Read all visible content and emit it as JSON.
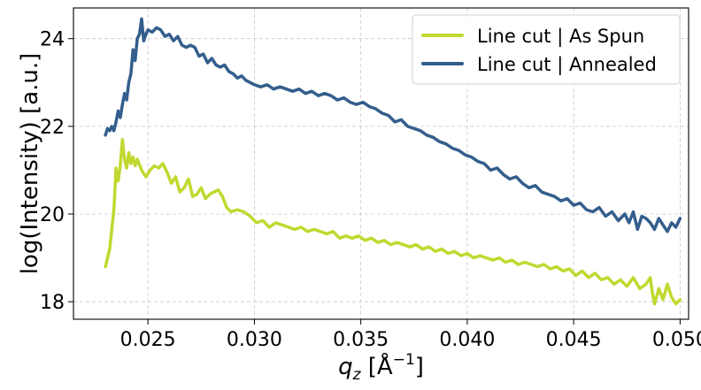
{
  "chart_data": {
    "type": "line",
    "xlabel": "q_z [Å^-1]",
    "ylabel": "log(Intensity) [a.u.]",
    "xlim": [
      0.0215,
      0.0504
    ],
    "ylim": [
      17.6,
      24.7
    ],
    "xticks": [
      0.025,
      0.03,
      0.035,
      0.04,
      0.045,
      0.05
    ],
    "xtick_labels": [
      "0.025",
      "0.030",
      "0.035",
      "0.040",
      "0.045",
      "0.050"
    ],
    "yticks": [
      18,
      20,
      22,
      24
    ],
    "ytick_labels": [
      "18",
      "20",
      "22",
      "24"
    ],
    "grid": true,
    "legend_position": "top-right",
    "series": [
      {
        "name": "Line cut | As Spun",
        "color": "#c1d82f",
        "points": [
          [
            0.023,
            18.8
          ],
          [
            0.0232,
            19.2
          ],
          [
            0.0234,
            20.1
          ],
          [
            0.0235,
            21.05
          ],
          [
            0.0236,
            20.75
          ],
          [
            0.0237,
            21.1
          ],
          [
            0.0238,
            21.7
          ],
          [
            0.0239,
            21.25
          ],
          [
            0.024,
            21.05
          ],
          [
            0.0241,
            21.4
          ],
          [
            0.0242,
            21.15
          ],
          [
            0.0243,
            21.3
          ],
          [
            0.0244,
            21.1
          ],
          [
            0.0245,
            21.25
          ],
          [
            0.0247,
            21.0
          ],
          [
            0.0249,
            20.85
          ],
          [
            0.0251,
            21.0
          ],
          [
            0.0253,
            21.1
          ],
          [
            0.0255,
            21.05
          ],
          [
            0.0257,
            21.15
          ],
          [
            0.0259,
            20.95
          ],
          [
            0.0261,
            20.7
          ],
          [
            0.0263,
            20.85
          ],
          [
            0.0265,
            20.5
          ],
          [
            0.0267,
            20.6
          ],
          [
            0.0269,
            20.8
          ],
          [
            0.0271,
            20.4
          ],
          [
            0.0273,
            20.45
          ],
          [
            0.0275,
            20.6
          ],
          [
            0.0277,
            20.35
          ],
          [
            0.0279,
            20.45
          ],
          [
            0.0281,
            20.5
          ],
          [
            0.0283,
            20.55
          ],
          [
            0.0285,
            20.4
          ],
          [
            0.0287,
            20.15
          ],
          [
            0.0289,
            20.05
          ],
          [
            0.0292,
            20.1
          ],
          [
            0.0295,
            20.05
          ],
          [
            0.0298,
            19.95
          ],
          [
            0.0301,
            19.8
          ],
          [
            0.0304,
            19.85
          ],
          [
            0.0307,
            19.7
          ],
          [
            0.031,
            19.8
          ],
          [
            0.0313,
            19.75
          ],
          [
            0.0316,
            19.7
          ],
          [
            0.0319,
            19.65
          ],
          [
            0.0322,
            19.7
          ],
          [
            0.0325,
            19.6
          ],
          [
            0.0328,
            19.65
          ],
          [
            0.0331,
            19.6
          ],
          [
            0.0334,
            19.55
          ],
          [
            0.0337,
            19.6
          ],
          [
            0.034,
            19.45
          ],
          [
            0.0343,
            19.5
          ],
          [
            0.0346,
            19.45
          ],
          [
            0.0349,
            19.5
          ],
          [
            0.0352,
            19.4
          ],
          [
            0.0355,
            19.45
          ],
          [
            0.0358,
            19.35
          ],
          [
            0.0361,
            19.4
          ],
          [
            0.0364,
            19.3
          ],
          [
            0.0367,
            19.35
          ],
          [
            0.037,
            19.3
          ],
          [
            0.0373,
            19.25
          ],
          [
            0.0376,
            19.3
          ],
          [
            0.0379,
            19.2
          ],
          [
            0.0382,
            19.25
          ],
          [
            0.0385,
            19.15
          ],
          [
            0.0388,
            19.2
          ],
          [
            0.0391,
            19.1
          ],
          [
            0.0394,
            19.15
          ],
          [
            0.0397,
            19.05
          ],
          [
            0.04,
            19.1
          ],
          [
            0.0403,
            19.0
          ],
          [
            0.0406,
            19.05
          ],
          [
            0.0409,
            19.0
          ],
          [
            0.0412,
            18.95
          ],
          [
            0.0415,
            19.0
          ],
          [
            0.0418,
            18.9
          ],
          [
            0.0421,
            18.95
          ],
          [
            0.0424,
            18.85
          ],
          [
            0.0427,
            18.9
          ],
          [
            0.043,
            18.85
          ],
          [
            0.0433,
            18.8
          ],
          [
            0.0436,
            18.85
          ],
          [
            0.0439,
            18.75
          ],
          [
            0.0442,
            18.8
          ],
          [
            0.0445,
            18.7
          ],
          [
            0.0448,
            18.75
          ],
          [
            0.0451,
            18.6
          ],
          [
            0.0454,
            18.7
          ],
          [
            0.0457,
            18.55
          ],
          [
            0.046,
            18.65
          ],
          [
            0.0463,
            18.5
          ],
          [
            0.0466,
            18.55
          ],
          [
            0.0469,
            18.4
          ],
          [
            0.0472,
            18.5
          ],
          [
            0.0475,
            18.35
          ],
          [
            0.0478,
            18.55
          ],
          [
            0.0481,
            18.3
          ],
          [
            0.0484,
            18.4
          ],
          [
            0.0486,
            18.55
          ],
          [
            0.0487,
            18.2
          ],
          [
            0.0488,
            17.95
          ],
          [
            0.049,
            18.3
          ],
          [
            0.0492,
            18.05
          ],
          [
            0.0494,
            18.4
          ],
          [
            0.0496,
            18.1
          ],
          [
            0.0498,
            17.95
          ],
          [
            0.05,
            18.05
          ]
        ]
      },
      {
        "name": "Line cut | Annealed",
        "color": "#335e8c",
        "points": [
          [
            0.023,
            21.8
          ],
          [
            0.0231,
            21.95
          ],
          [
            0.0232,
            21.9
          ],
          [
            0.0233,
            22.0
          ],
          [
            0.0234,
            21.9
          ],
          [
            0.0235,
            22.1
          ],
          [
            0.0236,
            22.35
          ],
          [
            0.0237,
            22.2
          ],
          [
            0.0238,
            22.5
          ],
          [
            0.0239,
            22.75
          ],
          [
            0.024,
            22.6
          ],
          [
            0.0241,
            23.0
          ],
          [
            0.0242,
            23.2
          ],
          [
            0.0243,
            23.75
          ],
          [
            0.0244,
            23.5
          ],
          [
            0.0245,
            24.0
          ],
          [
            0.0246,
            24.1
          ],
          [
            0.0247,
            24.45
          ],
          [
            0.0248,
            23.95
          ],
          [
            0.0249,
            24.1
          ],
          [
            0.025,
            24.2
          ],
          [
            0.0252,
            24.15
          ],
          [
            0.0254,
            24.25
          ],
          [
            0.0256,
            24.2
          ],
          [
            0.0258,
            24.05
          ],
          [
            0.026,
            24.1
          ],
          [
            0.0262,
            23.95
          ],
          [
            0.0264,
            24.05
          ],
          [
            0.0266,
            23.85
          ],
          [
            0.0268,
            23.8
          ],
          [
            0.027,
            23.85
          ],
          [
            0.0272,
            23.8
          ],
          [
            0.0274,
            23.6
          ],
          [
            0.0276,
            23.65
          ],
          [
            0.0278,
            23.45
          ],
          [
            0.028,
            23.55
          ],
          [
            0.0282,
            23.4
          ],
          [
            0.0284,
            23.35
          ],
          [
            0.0286,
            23.4
          ],
          [
            0.0288,
            23.25
          ],
          [
            0.029,
            23.2
          ],
          [
            0.0292,
            23.1
          ],
          [
            0.0294,
            23.15
          ],
          [
            0.0296,
            23.05
          ],
          [
            0.0298,
            23.0
          ],
          [
            0.03,
            22.95
          ],
          [
            0.0303,
            22.9
          ],
          [
            0.0306,
            22.95
          ],
          [
            0.0309,
            22.85
          ],
          [
            0.0312,
            22.9
          ],
          [
            0.0315,
            22.85
          ],
          [
            0.0318,
            22.8
          ],
          [
            0.0321,
            22.85
          ],
          [
            0.0324,
            22.75
          ],
          [
            0.0327,
            22.8
          ],
          [
            0.033,
            22.7
          ],
          [
            0.0333,
            22.75
          ],
          [
            0.0336,
            22.7
          ],
          [
            0.0339,
            22.6
          ],
          [
            0.0342,
            22.65
          ],
          [
            0.0345,
            22.55
          ],
          [
            0.0348,
            22.5
          ],
          [
            0.0351,
            22.55
          ],
          [
            0.0354,
            22.45
          ],
          [
            0.0357,
            22.4
          ],
          [
            0.036,
            22.3
          ],
          [
            0.0363,
            22.25
          ],
          [
            0.0366,
            22.1
          ],
          [
            0.0369,
            22.15
          ],
          [
            0.0372,
            22.0
          ],
          [
            0.0375,
            21.95
          ],
          [
            0.0378,
            21.9
          ],
          [
            0.0381,
            21.8
          ],
          [
            0.0384,
            21.75
          ],
          [
            0.0387,
            21.65
          ],
          [
            0.039,
            21.6
          ],
          [
            0.0393,
            21.5
          ],
          [
            0.0396,
            21.45
          ],
          [
            0.0399,
            21.35
          ],
          [
            0.0402,
            21.3
          ],
          [
            0.0405,
            21.2
          ],
          [
            0.0408,
            21.15
          ],
          [
            0.0411,
            21.0
          ],
          [
            0.0414,
            21.05
          ],
          [
            0.0417,
            20.9
          ],
          [
            0.042,
            20.8
          ],
          [
            0.0423,
            20.85
          ],
          [
            0.0426,
            20.7
          ],
          [
            0.0429,
            20.6
          ],
          [
            0.0432,
            20.65
          ],
          [
            0.0435,
            20.5
          ],
          [
            0.0438,
            20.45
          ],
          [
            0.0441,
            20.4
          ],
          [
            0.0444,
            20.3
          ],
          [
            0.0447,
            20.35
          ],
          [
            0.045,
            20.2
          ],
          [
            0.0453,
            20.25
          ],
          [
            0.0456,
            20.1
          ],
          [
            0.0459,
            20.05
          ],
          [
            0.0462,
            20.15
          ],
          [
            0.0465,
            19.95
          ],
          [
            0.0468,
            20.05
          ],
          [
            0.0471,
            19.85
          ],
          [
            0.0474,
            20.0
          ],
          [
            0.0476,
            19.8
          ],
          [
            0.0478,
            20.05
          ],
          [
            0.048,
            19.65
          ],
          [
            0.0482,
            19.95
          ],
          [
            0.0484,
            19.9
          ],
          [
            0.0486,
            19.8
          ],
          [
            0.0488,
            19.65
          ],
          [
            0.049,
            19.9
          ],
          [
            0.0492,
            19.75
          ],
          [
            0.0494,
            19.6
          ],
          [
            0.0496,
            19.8
          ],
          [
            0.0498,
            19.7
          ],
          [
            0.05,
            19.9
          ]
        ]
      }
    ]
  }
}
